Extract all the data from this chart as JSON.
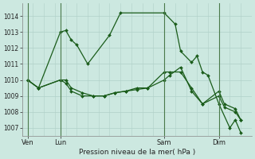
{
  "background_color": "#cce8e0",
  "grid_color": "#b0d0c8",
  "line_color": "#1a5c1a",
  "title": "Pression niveau de la mer( hPa )",
  "x_ticks_labels": [
    "Ven",
    "Lun",
    "Sam",
    "Dim"
  ],
  "ylim": [
    1006.5,
    1014.8
  ],
  "yticks": [
    1007,
    1008,
    1009,
    1010,
    1011,
    1012,
    1013,
    1014
  ],
  "series1_x": [
    0,
    1,
    3,
    3.5,
    4,
    4.5,
    5.5,
    7.5,
    8.5,
    12.5,
    13.5,
    14,
    15,
    15.5,
    16,
    16.5,
    17.5,
    18.5,
    19,
    19.5
  ],
  "series1_y": [
    1010.0,
    1009.5,
    1013.0,
    1013.1,
    1012.5,
    1012.2,
    1011.0,
    1012.8,
    1014.2,
    1014.2,
    1013.5,
    1011.8,
    1011.1,
    1011.5,
    1010.5,
    1010.3,
    1008.5,
    1007.0,
    1007.5,
    1006.7
  ],
  "series2_x": [
    0,
    1,
    3,
    3.5,
    4,
    5,
    6,
    7,
    8,
    9,
    10,
    11,
    12.5,
    13,
    14,
    15,
    16,
    17.5,
    18,
    19,
    19.5
  ],
  "series2_y": [
    1010.0,
    1009.5,
    1010.0,
    1010.0,
    1009.5,
    1009.2,
    1009.0,
    1009.0,
    1009.2,
    1009.3,
    1009.5,
    1009.5,
    1010.0,
    1010.3,
    1010.8,
    1009.3,
    1008.5,
    1009.3,
    1008.5,
    1008.2,
    1007.5
  ],
  "series3_x": [
    0,
    1,
    3,
    3.5,
    4,
    5,
    6,
    7,
    8,
    9,
    10,
    11,
    12.5,
    13,
    14,
    15,
    16,
    17.5,
    18,
    19,
    19.5
  ],
  "series3_y": [
    1010.0,
    1009.5,
    1010.0,
    1009.8,
    1009.3,
    1009.0,
    1009.0,
    1009.0,
    1009.2,
    1009.3,
    1009.4,
    1009.5,
    1010.5,
    1010.5,
    1010.5,
    1009.5,
    1008.5,
    1009.0,
    1008.3,
    1008.0,
    1007.5
  ],
  "vlines_x": [
    0,
    3,
    12.5,
    17.5
  ],
  "xtick_pos": [
    0,
    3,
    12.5,
    17.5
  ],
  "xlim": [
    -0.5,
    20.5
  ],
  "figsize": [
    3.2,
    2.0
  ],
  "dpi": 100
}
